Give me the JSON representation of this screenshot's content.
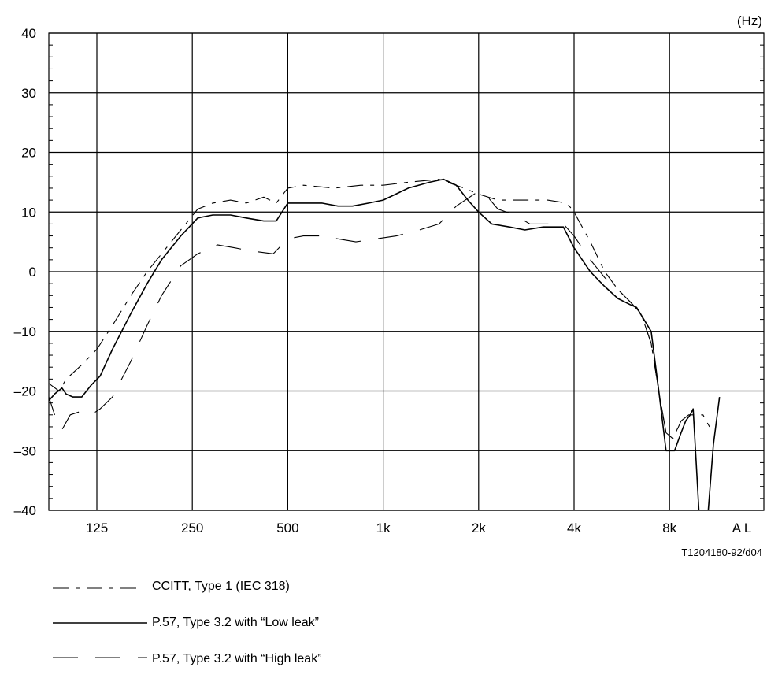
{
  "chart_data": {
    "type": "line",
    "title": "",
    "xlabel": "",
    "ylabel": "",
    "x_unit": "(Hz)",
    "x_scale": "log2 (octaves)",
    "x_ticks": [
      {
        "value": 125,
        "label": "125"
      },
      {
        "value": 250,
        "label": "250"
      },
      {
        "value": 500,
        "label": "500"
      },
      {
        "value": 1000,
        "label": "1k"
      },
      {
        "value": 2000,
        "label": "2k"
      },
      {
        "value": 4000,
        "label": "4k"
      },
      {
        "value": 8000,
        "label": "8k"
      }
    ],
    "x_extra_label": "A L",
    "xlim": [
      87,
      18000
    ],
    "ylim": [
      -40,
      40
    ],
    "y_ticks": [
      -40,
      -30,
      -20,
      -10,
      0,
      10,
      20,
      30,
      40
    ],
    "y_tick_labels": [
      "–40",
      "–30",
      "–20",
      "–10",
      "0",
      "10",
      "20",
      "30",
      "40"
    ],
    "grid": true,
    "legend_position": "bottom",
    "figure_id": "T1204180-92/d04",
    "series": [
      {
        "name": "CCITT, Type 1 (IEC 318)",
        "style": "dash-dot",
        "points": [
          [
            87,
            -18.5
          ],
          [
            95,
            -20
          ],
          [
            100,
            -18
          ],
          [
            110,
            -16
          ],
          [
            115,
            -15
          ],
          [
            125,
            -13
          ],
          [
            140,
            -9
          ],
          [
            160,
            -4
          ],
          [
            180,
            0
          ],
          [
            200,
            3
          ],
          [
            230,
            7
          ],
          [
            260,
            10.5
          ],
          [
            290,
            11.5
          ],
          [
            330,
            12
          ],
          [
            370,
            11.5
          ],
          [
            420,
            12.5
          ],
          [
            460,
            11.5
          ],
          [
            500,
            14
          ],
          [
            560,
            14.5
          ],
          [
            700,
            14
          ],
          [
            850,
            14.5
          ],
          [
            1000,
            14.5
          ],
          [
            1200,
            15
          ],
          [
            1500,
            15.5
          ],
          [
            1800,
            14
          ],
          [
            2000,
            13
          ],
          [
            2300,
            12
          ],
          [
            2800,
            12
          ],
          [
            3300,
            12
          ],
          [
            3800,
            11.5
          ],
          [
            4000,
            10
          ],
          [
            4500,
            5
          ],
          [
            5000,
            0
          ],
          [
            5500,
            -3
          ],
          [
            6000,
            -5
          ],
          [
            6500,
            -7
          ],
          [
            7000,
            -12
          ],
          [
            7300,
            -18
          ],
          [
            7500,
            -22
          ],
          [
            7800,
            -27
          ],
          [
            8200,
            -28
          ],
          [
            8700,
            -25
          ],
          [
            9200,
            -24
          ],
          [
            9700,
            -24
          ],
          [
            10200,
            -24
          ],
          [
            10700,
            -26
          ]
        ]
      },
      {
        "name": "P.57, Type 3.2 with “Low leak”",
        "style": "solid",
        "points": [
          [
            87,
            -22
          ],
          [
            92,
            -20.5
          ],
          [
            97,
            -19.5
          ],
          [
            100,
            -20.5
          ],
          [
            105,
            -21
          ],
          [
            112,
            -21
          ],
          [
            120,
            -19
          ],
          [
            128,
            -17.5
          ],
          [
            140,
            -13
          ],
          [
            160,
            -7
          ],
          [
            180,
            -2
          ],
          [
            200,
            2
          ],
          [
            230,
            6
          ],
          [
            260,
            9
          ],
          [
            290,
            9.5
          ],
          [
            330,
            9.5
          ],
          [
            370,
            9
          ],
          [
            420,
            8.5
          ],
          [
            460,
            8.5
          ],
          [
            500,
            11.5
          ],
          [
            560,
            11.5
          ],
          [
            640,
            11.5
          ],
          [
            720,
            11
          ],
          [
            800,
            11
          ],
          [
            900,
            11.5
          ],
          [
            1000,
            12
          ],
          [
            1200,
            14
          ],
          [
            1400,
            15
          ],
          [
            1550,
            15.5
          ],
          [
            1700,
            14.5
          ],
          [
            1850,
            12
          ],
          [
            2000,
            10
          ],
          [
            2200,
            8
          ],
          [
            2500,
            7.5
          ],
          [
            2800,
            7
          ],
          [
            3200,
            7.5
          ],
          [
            3700,
            7.5
          ],
          [
            4000,
            4
          ],
          [
            4500,
            0
          ],
          [
            5000,
            -2.5
          ],
          [
            5500,
            -4.5
          ],
          [
            6000,
            -5.5
          ],
          [
            6300,
            -6
          ],
          [
            7000,
            -10
          ],
          [
            7400,
            -20
          ],
          [
            7800,
            -30
          ],
          [
            8300,
            -30
          ],
          [
            8700,
            -27
          ],
          [
            9000,
            -25
          ],
          [
            9300,
            -24
          ],
          [
            9500,
            -23
          ],
          [
            9900,
            -40
          ],
          [
            10600,
            -40
          ],
          [
            11000,
            -29
          ],
          [
            11500,
            -21
          ]
        ]
      },
      {
        "name": "P.57, Type 3.2 with “High leak”",
        "style": "long-dash",
        "points": [
          [
            87,
            -20
          ],
          [
            92,
            -24
          ],
          [
            97,
            -26.5
          ],
          [
            103,
            -24
          ],
          [
            110,
            -23.5
          ],
          [
            120,
            -24
          ],
          [
            128,
            -23
          ],
          [
            140,
            -21
          ],
          [
            160,
            -15
          ],
          [
            180,
            -9
          ],
          [
            200,
            -4
          ],
          [
            230,
            1
          ],
          [
            260,
            3
          ],
          [
            300,
            4.5
          ],
          [
            340,
            4
          ],
          [
            380,
            3.5
          ],
          [
            450,
            3
          ],
          [
            500,
            5.5
          ],
          [
            560,
            6
          ],
          [
            640,
            6
          ],
          [
            720,
            5.5
          ],
          [
            820,
            5
          ],
          [
            950,
            5.5
          ],
          [
            1100,
            6
          ],
          [
            1300,
            7
          ],
          [
            1500,
            8
          ],
          [
            1700,
            11
          ],
          [
            2000,
            13.5
          ],
          [
            2100,
            13
          ],
          [
            2300,
            10.5
          ],
          [
            2600,
            9.5
          ],
          [
            2900,
            8
          ],
          [
            3200,
            8
          ],
          [
            3700,
            8
          ],
          [
            4000,
            6
          ],
          [
            4500,
            2
          ],
          [
            5000,
            -1
          ],
          [
            5500,
            -3
          ],
          [
            6000,
            -5
          ],
          [
            6500,
            -7
          ],
          [
            7000,
            -12
          ],
          [
            7400,
            -20
          ],
          [
            7800,
            -27
          ],
          [
            8300,
            -27.5
          ],
          [
            8700,
            -25
          ]
        ]
      }
    ]
  }
}
